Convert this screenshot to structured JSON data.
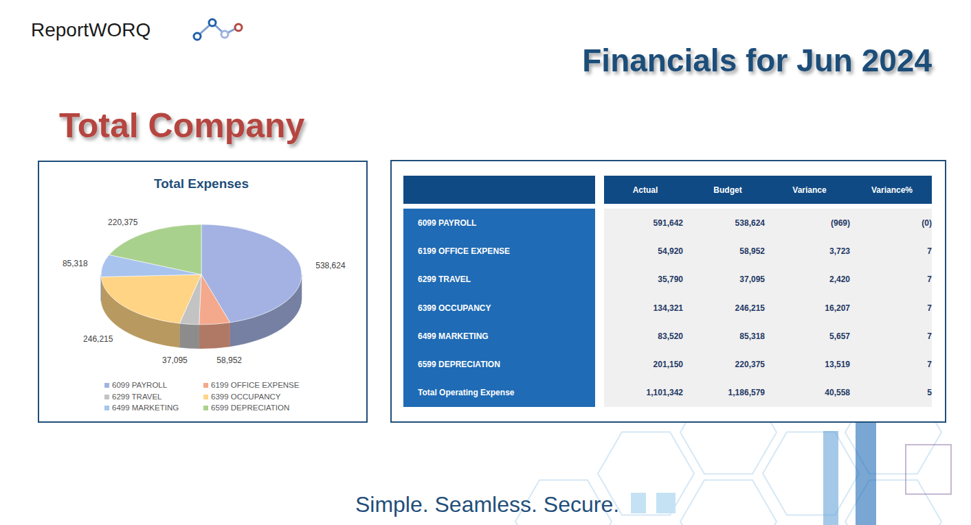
{
  "header": {
    "logo": "ReportWORQ",
    "title": "Financials for Jun 2024",
    "section": "Total Company",
    "tagline": "Simple. Seamless. Secure."
  },
  "chart_data": {
    "type": "pie",
    "title": "Total Expenses",
    "categories": [
      "6099 PAYROLL",
      "6199 OFFICE EXPENSE",
      "6299 TRAVEL",
      "6399 OCCUPANCY",
      "6499 MARKETING",
      "6599 DEPRECIATION"
    ],
    "values": [
      538624,
      58952,
      37095,
      246215,
      85318,
      220375
    ],
    "value_labels": [
      "538,624",
      "58,952",
      "37,095",
      "246,215",
      "85,318",
      "220,375"
    ],
    "colors": [
      "#a3b2e2",
      "#f4a88c",
      "#c3c3c3",
      "#ffd485",
      "#a8c3ee",
      "#a9d18e"
    ],
    "data_labels": true,
    "legend": "bottom"
  },
  "table": {
    "columns": [
      "Actual",
      "Budget",
      "Variance",
      "Variance%"
    ],
    "rows": [
      {
        "label": "6099 PAYROLL",
        "values": [
          "591,642",
          "538,624",
          "(969)",
          "(0)"
        ]
      },
      {
        "label": "6199 OFFICE EXPENSE",
        "values": [
          "54,920",
          "58,952",
          "3,723",
          "7"
        ]
      },
      {
        "label": "6299 TRAVEL",
        "values": [
          "35,790",
          "37,095",
          "2,420",
          "7"
        ]
      },
      {
        "label": "6399 OCCUPANCY",
        "values": [
          "134,321",
          "246,215",
          "16,207",
          "7"
        ]
      },
      {
        "label": "6499 MARKETING",
        "values": [
          "83,520",
          "85,318",
          "5,657",
          "7"
        ]
      },
      {
        "label": "6599 DEPRECIATION",
        "values": [
          "201,150",
          "220,375",
          "13,519",
          "7"
        ]
      },
      {
        "label": "Total Operating Expense",
        "values": [
          "1,101,342",
          "1,186,579",
          "40,558",
          "5"
        ]
      }
    ]
  }
}
